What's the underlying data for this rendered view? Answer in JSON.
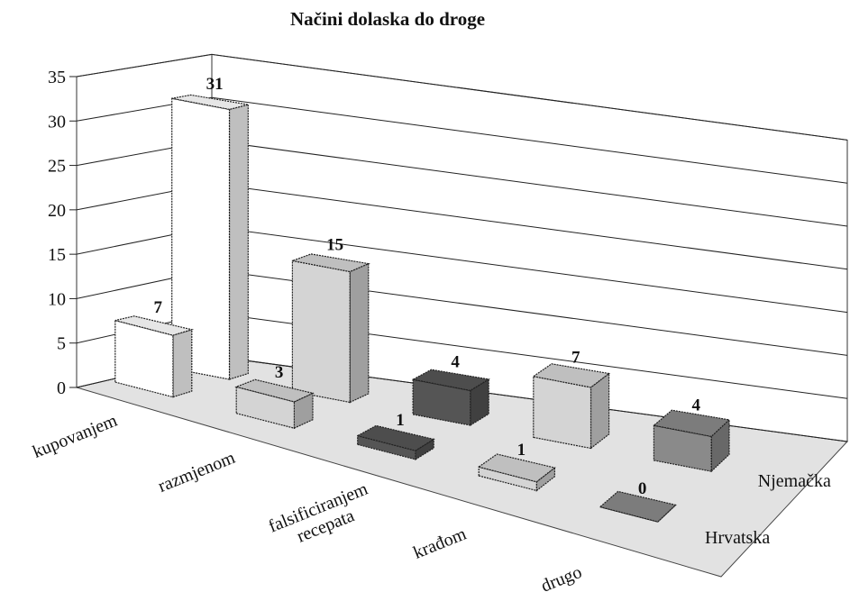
{
  "chart_data": {
    "type": "bar3d",
    "title": "Načini dolaska do droge",
    "categories": [
      "kupovanjem",
      "razmjenom",
      "falsificiranjem\nrecepata",
      "krađom",
      "drugo"
    ],
    "colors": [
      "#ffffff",
      "#d4d4d4",
      "#555555",
      "#d4d4d4",
      "#8a8a8a"
    ],
    "series": [
      {
        "name": "Hrvatska",
        "values": [
          7,
          3,
          1,
          1,
          0
        ]
      },
      {
        "name": "Njemačka",
        "values": [
          31,
          15,
          4,
          7,
          4
        ]
      }
    ],
    "ylim": [
      0,
      35
    ],
    "yticks": [
      0,
      5,
      10,
      15,
      20,
      25,
      30,
      35
    ],
    "grid": true
  }
}
